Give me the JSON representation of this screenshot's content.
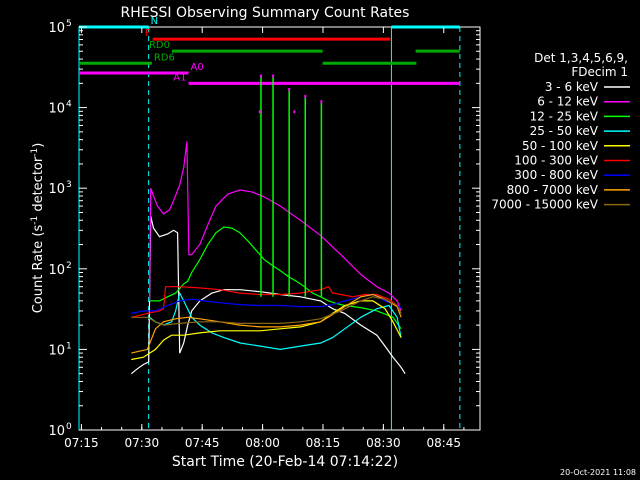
{
  "chart_data": {
    "type": "line",
    "title": "RHESSI Observing Summary Count Rates",
    "xlabel": "Start Time (20-Feb-14 07:14:22)",
    "ylabel_main": "Count Rate (s",
    "ylabel_sup": "-1",
    "ylabel_tail": " detector",
    "ylabel_end": ")",
    "x_unit": "minutes after 07:14:22",
    "xlim": [
      0,
      99.6
    ],
    "ylim": [
      1,
      100000
    ],
    "yscale": "log",
    "xtick_labels": [
      {
        "x": 0.6,
        "label": "07:15"
      },
      {
        "x": 15.6,
        "label": "07:30"
      },
      {
        "x": 30.6,
        "label": "07:45"
      },
      {
        "x": 45.6,
        "label": "08:00"
      },
      {
        "x": 60.6,
        "label": "08:15"
      },
      {
        "x": 75.6,
        "label": "08:30"
      },
      {
        "x": 90.6,
        "label": "08:45"
      }
    ],
    "ytick_labels": [
      {
        "y": 1,
        "base": "10",
        "exp": "0"
      },
      {
        "y": 10,
        "base": "10",
        "exp": "1"
      },
      {
        "y": 100,
        "base": "10",
        "exp": "2"
      },
      {
        "y": 1000,
        "base": "10",
        "exp": "3"
      },
      {
        "y": 10000,
        "base": "10",
        "exp": "4"
      },
      {
        "y": 100000,
        "base": "10",
        "exp": "5"
      }
    ],
    "legend_placement": "right",
    "legend_header": [
      "Det 1,3,4,5,6,9,",
      "FDecim 1"
    ],
    "series": [
      {
        "name": "3 - 6 keV",
        "color": "#ffffff",
        "points": [
          [
            13,
            5
          ],
          [
            14,
            5.5
          ],
          [
            15,
            6
          ],
          [
            16,
            6.5
          ],
          [
            17.3,
            7
          ],
          [
            17.8,
            450
          ],
          [
            18.5,
            320
          ],
          [
            20,
            250
          ],
          [
            22,
            270
          ],
          [
            23.5,
            300
          ],
          [
            24.5,
            280
          ],
          [
            25,
            9
          ],
          [
            26,
            12
          ],
          [
            27,
            20
          ],
          [
            28,
            30
          ],
          [
            30,
            40
          ],
          [
            33,
            50
          ],
          [
            36,
            55
          ],
          [
            40,
            55
          ],
          [
            45,
            52
          ],
          [
            50,
            48
          ],
          [
            55,
            45
          ],
          [
            60,
            40
          ],
          [
            63,
            32
          ],
          [
            66,
            28
          ],
          [
            70,
            20
          ],
          [
            74,
            15
          ],
          [
            76,
            11
          ],
          [
            78,
            8
          ],
          [
            80,
            6
          ],
          [
            81,
            5
          ]
        ]
      },
      {
        "name": "6 - 12 keV",
        "color": "#ff00ff",
        "points": [
          [
            17.5,
            40
          ],
          [
            17.8,
            1000
          ],
          [
            18.5,
            800
          ],
          [
            19.5,
            600
          ],
          [
            21,
            480
          ],
          [
            22.5,
            540
          ],
          [
            23.5,
            700
          ],
          [
            25,
            1100
          ],
          [
            26,
            1800
          ],
          [
            26.8,
            3800
          ],
          [
            27.3,
            150
          ],
          [
            28,
            150
          ],
          [
            30,
            200
          ],
          [
            32,
            350
          ],
          [
            34,
            600
          ],
          [
            37,
            850
          ],
          [
            40,
            950
          ],
          [
            43,
            900
          ],
          [
            46,
            780
          ],
          [
            50,
            600
          ],
          [
            55,
            400
          ],
          [
            60,
            260
          ],
          [
            65,
            150
          ],
          [
            70,
            85
          ],
          [
            74,
            60
          ],
          [
            77,
            50
          ],
          [
            79,
            40
          ],
          [
            80,
            30
          ]
        ]
      },
      {
        "name": "12 - 25 keV",
        "color": "#00ff00",
        "points": [
          [
            17.7,
            40
          ],
          [
            18.5,
            40
          ],
          [
            20,
            40
          ],
          [
            22,
            45
          ],
          [
            24,
            50
          ],
          [
            26,
            65
          ],
          [
            27,
            70
          ],
          [
            28,
            90
          ],
          [
            30,
            130
          ],
          [
            32,
            200
          ],
          [
            34,
            280
          ],
          [
            36,
            330
          ],
          [
            38,
            320
          ],
          [
            40,
            280
          ],
          [
            42,
            220
          ],
          [
            44,
            170
          ],
          [
            46,
            130
          ],
          [
            48,
            110
          ],
          [
            50,
            95
          ],
          [
            52,
            80
          ],
          [
            54,
            70
          ],
          [
            56,
            60
          ],
          [
            58,
            50
          ],
          [
            60,
            45
          ],
          [
            62,
            40
          ],
          [
            64,
            37
          ],
          [
            66,
            35
          ],
          [
            70,
            33
          ],
          [
            74,
            30
          ],
          [
            78,
            25
          ],
          [
            80,
            18
          ]
        ]
      },
      {
        "name": "25 - 50 keV",
        "color": "#00ffff",
        "points": [
          [
            17.5,
            25
          ],
          [
            19,
            22
          ],
          [
            21,
            20
          ],
          [
            23,
            22
          ],
          [
            24,
            30
          ],
          [
            25,
            50
          ],
          [
            26,
            40
          ],
          [
            28,
            25
          ],
          [
            30,
            20
          ],
          [
            33,
            16
          ],
          [
            36,
            14
          ],
          [
            40,
            12
          ],
          [
            45,
            11
          ],
          [
            50,
            10
          ],
          [
            55,
            11
          ],
          [
            60,
            12
          ],
          [
            63,
            14
          ],
          [
            66,
            18
          ],
          [
            70,
            25
          ],
          [
            74,
            32
          ],
          [
            77,
            35
          ],
          [
            79,
            25
          ],
          [
            80,
            14
          ]
        ]
      },
      {
        "name": "50 - 100 keV",
        "color": "#ffff00",
        "points": [
          [
            13,
            7.5
          ],
          [
            16,
            8
          ],
          [
            19,
            10
          ],
          [
            21,
            13
          ],
          [
            22,
            14
          ],
          [
            23,
            15
          ],
          [
            26,
            15
          ],
          [
            30,
            16
          ],
          [
            35,
            17
          ],
          [
            40,
            17
          ],
          [
            45,
            17
          ],
          [
            50,
            18
          ],
          [
            55,
            19
          ],
          [
            60,
            22
          ],
          [
            63,
            28
          ],
          [
            66,
            35
          ],
          [
            70,
            40
          ],
          [
            73,
            40
          ],
          [
            76,
            32
          ],
          [
            78,
            22
          ],
          [
            80,
            14
          ]
        ]
      },
      {
        "name": "100 - 300 keV",
        "color": "#ff0000",
        "points": [
          [
            13,
            25
          ],
          [
            17,
            28
          ],
          [
            20,
            30
          ],
          [
            21,
            32
          ],
          [
            21.5,
            60
          ],
          [
            25,
            60
          ],
          [
            30,
            58
          ],
          [
            35,
            55
          ],
          [
            40,
            50
          ],
          [
            45,
            48
          ],
          [
            50,
            48
          ],
          [
            55,
            50
          ],
          [
            60,
            55
          ],
          [
            62,
            60
          ],
          [
            63,
            50
          ],
          [
            65,
            48
          ],
          [
            68,
            45
          ],
          [
            71,
            48
          ],
          [
            74,
            48
          ],
          [
            77,
            42
          ],
          [
            79,
            35
          ],
          [
            80,
            28
          ]
        ]
      },
      {
        "name": "300 - 800 keV",
        "color": "#0000ff",
        "points": [
          [
            13,
            28
          ],
          [
            16,
            30
          ],
          [
            19,
            30
          ],
          [
            22,
            35
          ],
          [
            25,
            40
          ],
          [
            28,
            42
          ],
          [
            31,
            40
          ],
          [
            35,
            38
          ],
          [
            40,
            36
          ],
          [
            45,
            35
          ],
          [
            50,
            35
          ],
          [
            55,
            34
          ],
          [
            60,
            34
          ],
          [
            63,
            36
          ],
          [
            66,
            40
          ],
          [
            70,
            45
          ],
          [
            73,
            48
          ],
          [
            76,
            40
          ],
          [
            79,
            35
          ],
          [
            80,
            33
          ]
        ]
      },
      {
        "name": "800 - 7000 keV",
        "color": "#ffa500",
        "points": [
          [
            13,
            9
          ],
          [
            15,
            9.5
          ],
          [
            17,
            10
          ],
          [
            19,
            18
          ],
          [
            21,
            22
          ],
          [
            24,
            24
          ],
          [
            27,
            25
          ],
          [
            30,
            24
          ],
          [
            35,
            22
          ],
          [
            40,
            20
          ],
          [
            45,
            19
          ],
          [
            50,
            19
          ],
          [
            55,
            20
          ],
          [
            60,
            22
          ],
          [
            63,
            27
          ],
          [
            66,
            34
          ],
          [
            70,
            45
          ],
          [
            73,
            48
          ],
          [
            76,
            42
          ],
          [
            79,
            34
          ],
          [
            80,
            25
          ]
        ]
      },
      {
        "name": "7000 - 15000 keV",
        "color": "#8b6914",
        "points": [
          [
            13,
            25
          ],
          [
            17,
            25
          ],
          [
            19,
            22
          ],
          [
            21,
            20
          ],
          [
            25,
            21
          ],
          [
            30,
            22
          ],
          [
            35,
            22
          ],
          [
            40,
            21
          ],
          [
            45,
            21
          ],
          [
            50,
            21
          ],
          [
            55,
            22
          ],
          [
            60,
            24
          ],
          [
            65,
            30
          ],
          [
            70,
            40
          ],
          [
            73,
            45
          ],
          [
            76,
            42
          ],
          [
            79,
            35
          ],
          [
            80,
            28
          ]
        ]
      }
    ],
    "spikes": [
      {
        "x": 45.2,
        "y": 25000,
        "color": "#00ff00"
      },
      {
        "x": 48.2,
        "y": 25000,
        "color": "#00ff00"
      },
      {
        "x": 52.2,
        "y": 17000,
        "color": "#00ff00"
      },
      {
        "x": 56.2,
        "y": 14000,
        "color": "#00ff00"
      },
      {
        "x": 60.2,
        "y": 12000,
        "color": "#00ff00"
      }
    ],
    "spike_tips": [
      {
        "x": 45.2,
        "y": 25000
      },
      {
        "x": 48.2,
        "y": 25000
      },
      {
        "x": 52.2,
        "y": 17000
      },
      {
        "x": 56.2,
        "y": 14000
      },
      {
        "x": 60.2,
        "y": 12000
      },
      {
        "x": 44.9,
        "y": 9000
      },
      {
        "x": 53.5,
        "y": 9000
      }
    ],
    "vlines": [
      {
        "x": 0,
        "style": "solid",
        "color": "#00ffff"
      },
      {
        "x": 17.3,
        "style": "dashed",
        "color": "#00ffff"
      },
      {
        "x": 77.6,
        "style": "solid",
        "color": "#00ffff"
      },
      {
        "x": 94.6,
        "style": "dashed",
        "color": "#00ffff"
      }
    ],
    "state_bars": [
      {
        "label": "N",
        "color": "#00ffff",
        "segments": [
          [
            0,
            17.3
          ],
          [
            77.6,
            94.6
          ]
        ],
        "y": 3.0
      },
      {
        "label": "F",
        "color": "#ff0000",
        "segments": [
          [
            18.3,
            77.3
          ]
        ],
        "y": 2.85
      },
      {
        "label": "RD0",
        "color": "#00aa00",
        "segments": [
          [
            23.1,
            60.5
          ],
          [
            83.6,
            94.6
          ]
        ],
        "y": 2.7
      },
      {
        "label": "RD6",
        "color": "#00aa00",
        "segments": [
          [
            0,
            18.1
          ],
          [
            60.5,
            83.8
          ]
        ],
        "y": 2.55
      },
      {
        "label": "A0",
        "color": "#ff00ff",
        "segments": [
          [
            0,
            27.2
          ]
        ],
        "y": 2.43
      },
      {
        "label": "A1",
        "color": "#ff00ff",
        "segments": [
          [
            27.2,
            94.6
          ]
        ],
        "y": 2.3
      }
    ],
    "timestamp": "20-Oct-2021 11:08"
  }
}
